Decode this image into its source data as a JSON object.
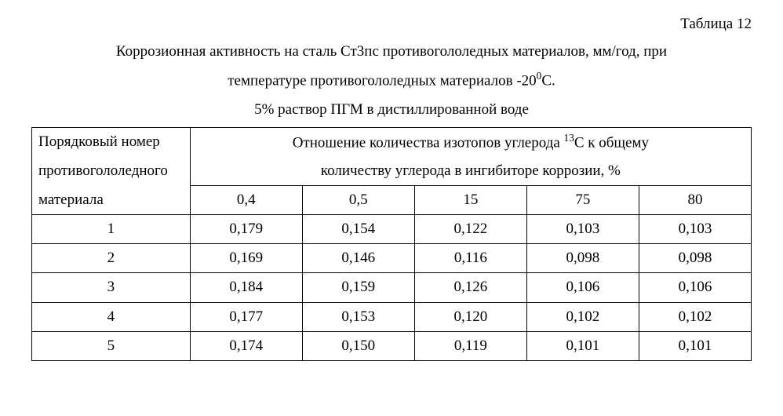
{
  "table_label": "Таблица 12",
  "caption_line1_before": "Коррозионная активность на сталь Ст3пс противогололедных материалов, мм/год, при",
  "caption_line2_before": "температуре противогололедных материалов -20",
  "caption_line2_sup": "0",
  "caption_line2_after": "С.",
  "caption_line3": "5% раствор ПГМ в дистиллированной воде",
  "rowhead_l1": "Порядковый номер",
  "rowhead_l2": "противогололедного",
  "rowhead_l3": "материала",
  "colhead_before": "Отношение количества изотопов углерода ",
  "colhead_sup": "13",
  "colhead_mid": "С к общему",
  "colhead_line2": "количеству углерода в ингибиторе коррозии, %",
  "col_labels": [
    "0,4",
    "0,5",
    "15",
    "75",
    "80"
  ],
  "rows": [
    {
      "n": "1",
      "v": [
        "0,179",
        "0,154",
        "0,122",
        "0,103",
        "0,103"
      ]
    },
    {
      "n": "2",
      "v": [
        "0,169",
        "0,146",
        "0,116",
        "0,098",
        "0,098"
      ]
    },
    {
      "n": "3",
      "v": [
        "0,184",
        "0,159",
        "0,126",
        "0,106",
        "0,106"
      ]
    },
    {
      "n": "4",
      "v": [
        "0,177",
        "0,153",
        "0,120",
        "0,102",
        "0,102"
      ]
    },
    {
      "n": "5",
      "v": [
        "0,174",
        "0,150",
        "0,119",
        "0,101",
        "0,101"
      ]
    }
  ],
  "col_widths_pct": [
    22,
    15.6,
    15.6,
    15.6,
    15.6,
    15.6
  ]
}
